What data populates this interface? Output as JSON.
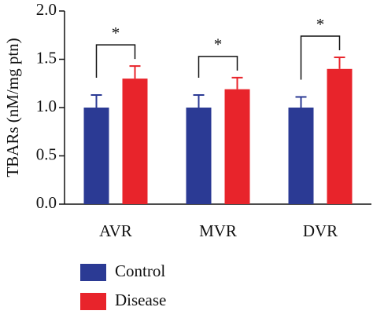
{
  "chart_data": {
    "type": "bar",
    "y_label": "TBARs (nM/mg ptn)",
    "categories": [
      "AVR",
      "MVR",
      "DVR"
    ],
    "series": [
      {
        "name": "Control",
        "color": "#2b3a94",
        "values": [
          1.0,
          1.0,
          1.0
        ],
        "errors": [
          0.13,
          0.13,
          0.11
        ]
      },
      {
        "name": "Disease",
        "color": "#e8242b",
        "values": [
          1.3,
          1.19,
          1.4
        ],
        "errors": [
          0.13,
          0.12,
          0.12
        ]
      }
    ],
    "annotations": [
      "*",
      "*",
      "*"
    ],
    "ylim": [
      0,
      2
    ],
    "yticks": [
      {
        "value": 0,
        "label": "0.0"
      },
      {
        "value": 0.5,
        "label": "0.5"
      },
      {
        "value": 1,
        "label": "1.0"
      },
      {
        "value": 1.5,
        "label": "1.5"
      },
      {
        "value": 2,
        "label": "2.0"
      }
    ],
    "legend": "bottom-left"
  }
}
